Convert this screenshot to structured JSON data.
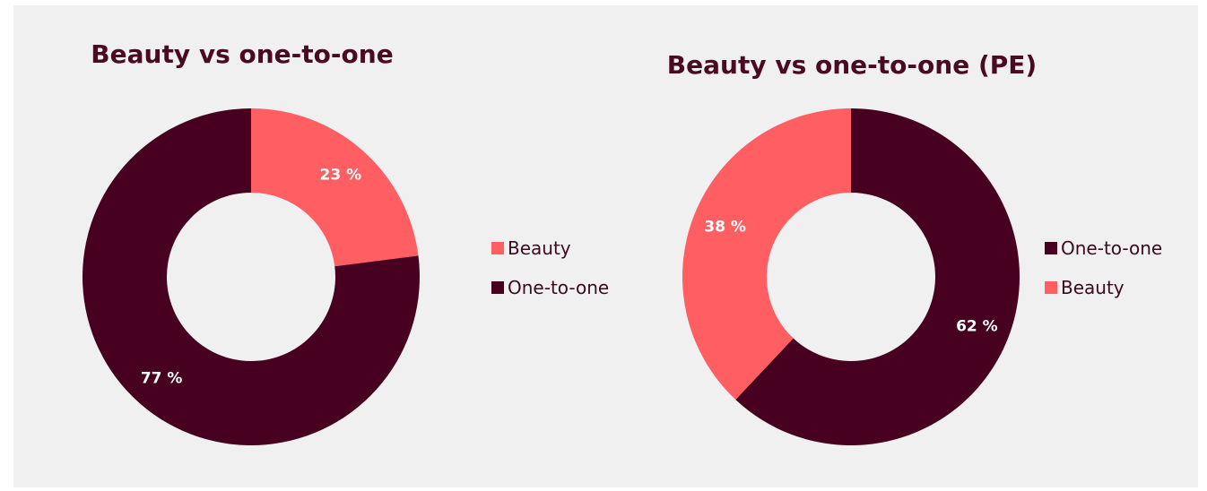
{
  "colors": {
    "dark": "#470020",
    "light": "#ff5e62",
    "background": "#f0f0f0",
    "text": "#4a0a22"
  },
  "chart_data": [
    {
      "type": "pie",
      "donut": true,
      "title": "Beauty vs one-to-one",
      "slices": [
        {
          "label": "Beauty",
          "value": 23,
          "display": "23 %",
          "color": "#ff5e62"
        },
        {
          "label": "One-to-one",
          "value": 77,
          "display": "77 %",
          "color": "#470020"
        }
      ],
      "legend": {
        "position": "right",
        "items": [
          {
            "label": "Beauty",
            "color": "#ff5e62"
          },
          {
            "label": "One-to-one",
            "color": "#470020"
          }
        ]
      }
    },
    {
      "type": "pie",
      "donut": true,
      "title": "Beauty vs one-to-one (PE)",
      "slices": [
        {
          "label": "One-to-one",
          "value": 62,
          "display": "62 %",
          "color": "#470020"
        },
        {
          "label": "Beauty",
          "value": 38,
          "display": "38 %",
          "color": "#ff5e62"
        }
      ],
      "legend": {
        "position": "right",
        "items": [
          {
            "label": "One-to-one",
            "color": "#470020"
          },
          {
            "label": "Beauty",
            "color": "#ff5e62"
          }
        ]
      }
    }
  ]
}
